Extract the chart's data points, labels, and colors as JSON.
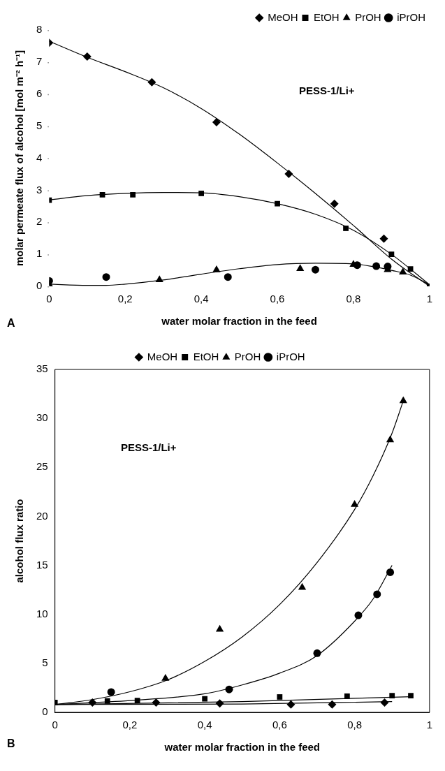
{
  "chart_data": [
    {
      "type": "scatter",
      "xlabel": "water molar fraction in the feed",
      "ylabel": "molar permeate flux of alcohol [mol m⁻² h⁻¹]",
      "xlim": [
        0,
        1
      ],
      "ylim": [
        0,
        8
      ],
      "xticks": [
        {
          "value": 0,
          "label": "0"
        },
        {
          "value": 0.2,
          "label": "0,2"
        },
        {
          "value": 0.4,
          "label": "0,4"
        },
        {
          "value": 0.6,
          "label": "0,6"
        },
        {
          "value": 0.8,
          "label": "0,8"
        },
        {
          "value": 1,
          "label": "1"
        }
      ],
      "yticks": [
        0,
        1,
        2,
        3,
        4,
        5,
        6,
        7,
        8
      ],
      "grid": false,
      "legend": "top right",
      "annotations": [
        "PESS-1/Li+",
        "A"
      ],
      "series": [
        {
          "name": "MeOH",
          "marker": "diamond",
          "color": "#000000",
          "x": [
            0,
            0.1,
            0.27,
            0.44,
            0.63,
            0.75,
            0.88
          ],
          "values": [
            7.6,
            7.17,
            6.37,
            5.12,
            3.51,
            2.58,
            1.49
          ]
        },
        {
          "name": "EtOH",
          "marker": "square",
          "color": "#000000",
          "x": [
            0,
            0.14,
            0.22,
            0.4,
            0.6,
            0.78,
            0.9,
            0.95,
            1
          ],
          "values": [
            2.69,
            2.86,
            2.86,
            2.9,
            2.58,
            1.81,
            1.0,
            0.54,
            0
          ]
        },
        {
          "name": "PrOH",
          "marker": "triangle",
          "color": "#000000",
          "x": [
            0,
            0.29,
            0.44,
            0.66,
            0.8,
            0.89,
            0.93
          ],
          "values": [
            0.06,
            0.2,
            0.51,
            0.55,
            0.68,
            0.52,
            0.44
          ]
        },
        {
          "name": "iPrOH",
          "marker": "circle",
          "color": "#000000",
          "x": [
            0,
            0.15,
            0.47,
            0.7,
            0.81,
            0.86,
            0.89
          ],
          "values": [
            0.17,
            0.29,
            0.29,
            0.52,
            0.66,
            0.63,
            0.62
          ]
        },
        {
          "type": "line",
          "marker": "none",
          "color": "#000000",
          "x": [
            0,
            0.1,
            0.2,
            0.3,
            0.4,
            0.5,
            0.6,
            0.7,
            0.8,
            0.9,
            1
          ],
          "values": [
            7.65,
            7.15,
            6.7,
            6.2,
            5.55,
            4.75,
            3.85,
            2.9,
            1.9,
            0.85,
            0
          ]
        },
        {
          "type": "line",
          "marker": "none",
          "color": "#000000",
          "x": [
            0,
            0.1,
            0.2,
            0.3,
            0.4,
            0.5,
            0.6,
            0.7,
            0.8,
            0.9,
            1
          ],
          "values": [
            2.7,
            2.83,
            2.9,
            2.93,
            2.92,
            2.8,
            2.58,
            2.25,
            1.75,
            1.0,
            0.05
          ]
        },
        {
          "type": "line",
          "marker": "none",
          "color": "#000000",
          "x": [
            0,
            0.1,
            0.15,
            0.2,
            0.3,
            0.4,
            0.5,
            0.6,
            0.7,
            0.8,
            0.85,
            0.9,
            0.95,
            1
          ],
          "values": [
            0.07,
            0.03,
            0.03,
            0.07,
            0.2,
            0.38,
            0.55,
            0.68,
            0.72,
            0.7,
            0.62,
            0.5,
            0.35,
            0.05
          ]
        }
      ]
    },
    {
      "type": "scatter",
      "xlabel": "water molar fraction in the feed",
      "ylabel": "alcohol flux ratio",
      "xlim": [
        0,
        1
      ],
      "ylim": [
        0,
        35
      ],
      "xticks": [
        {
          "value": 0,
          "label": "0"
        },
        {
          "value": 0.2,
          "label": "0,2"
        },
        {
          "value": 0.4,
          "label": "0,4"
        },
        {
          "value": 0.6,
          "label": "0,6"
        },
        {
          "value": 0.8,
          "label": "0,8"
        },
        {
          "value": 1,
          "label": "1"
        }
      ],
      "yticks": [
        0,
        5,
        10,
        15,
        20,
        25,
        30,
        35
      ],
      "grid": false,
      "legend": "top",
      "annotations": [
        "PESS-1/Li+",
        "B"
      ],
      "series": [
        {
          "name": "MeOH",
          "marker": "diamond",
          "color": "#000000",
          "x": [
            0.1,
            0.27,
            0.44,
            0.63,
            0.74,
            0.88
          ],
          "values": [
            1.0,
            1.0,
            0.9,
            0.8,
            0.8,
            1.0
          ]
        },
        {
          "name": "EtOH",
          "marker": "square",
          "color": "#000000",
          "x": [
            0,
            0.14,
            0.22,
            0.4,
            0.6,
            0.78,
            0.9,
            0.95
          ],
          "values": [
            1.0,
            1.16,
            1.2,
            1.38,
            1.57,
            1.65,
            1.7,
            1.7
          ]
        },
        {
          "name": "PrOH",
          "marker": "triangle",
          "color": "#000000",
          "x": [
            0.295,
            0.44,
            0.66,
            0.8,
            0.895,
            0.93
          ],
          "values": [
            3.45,
            8.47,
            12.74,
            21.2,
            27.8,
            31.8
          ]
        },
        {
          "name": "iPrOH",
          "marker": "circle",
          "color": "#000000",
          "x": [
            0.15,
            0.465,
            0.7,
            0.81,
            0.86,
            0.895
          ],
          "values": [
            2.07,
            2.34,
            6.04,
            9.9,
            12.05,
            14.3
          ]
        },
        {
          "type": "line",
          "marker": "none",
          "color": "#000000",
          "x": [
            0,
            0.1,
            0.2,
            0.3,
            0.4,
            0.5,
            0.6,
            0.7,
            0.8,
            0.85,
            0.9,
            0.93
          ],
          "values": [
            0.8,
            1.3,
            2.1,
            3.3,
            5.2,
            7.7,
            11.0,
            15.3,
            20.7,
            24.2,
            28.5,
            31.8
          ]
        },
        {
          "type": "line",
          "marker": "none",
          "color": "#000000",
          "x": [
            0,
            0.2,
            0.4,
            0.5,
            0.6,
            0.7,
            0.8,
            0.85,
            0.9
          ],
          "values": [
            0.8,
            1.2,
            1.9,
            2.8,
            4.0,
            5.8,
            9.3,
            11.6,
            15.0
          ]
        },
        {
          "type": "line",
          "marker": "none",
          "color": "#000000",
          "x": [
            0,
            0.5,
            0.9
          ],
          "values": [
            0.8,
            0.85,
            1.1
          ]
        },
        {
          "type": "line",
          "marker": "none",
          "color": "#000000",
          "x": [
            0,
            0.5,
            0.95
          ],
          "values": [
            0.8,
            1.1,
            1.6
          ]
        }
      ]
    }
  ]
}
